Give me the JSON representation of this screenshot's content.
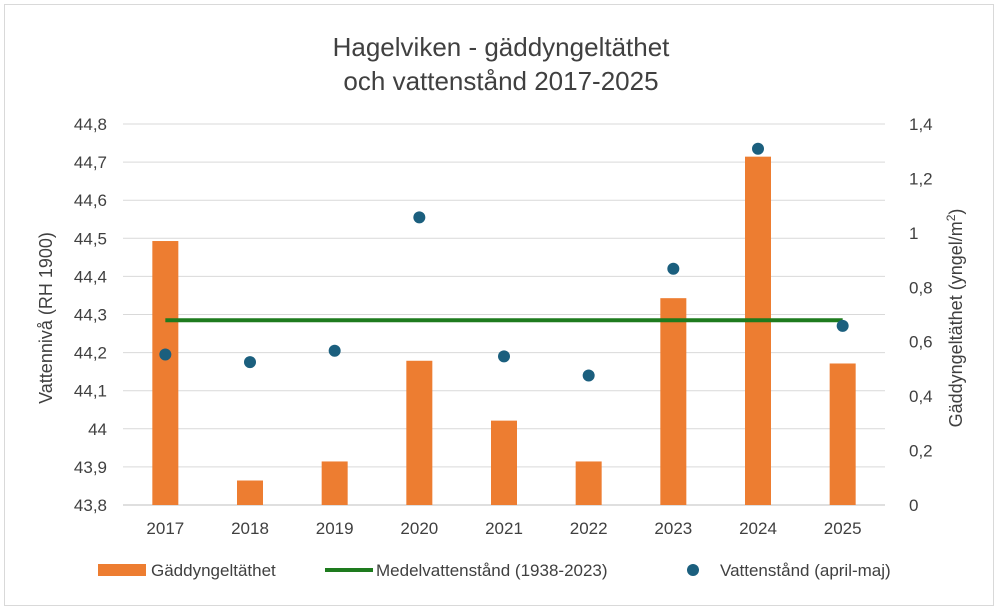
{
  "chart_data": {
    "type": "bar",
    "title_line1": "Hagelviken - gäddyngeltäthet",
    "title_line2": "och vattenstånd 2017-2025",
    "categories": [
      "2017",
      "2018",
      "2019",
      "2020",
      "2021",
      "2022",
      "2023",
      "2024",
      "2025"
    ],
    "y_left": {
      "label": "Vattennivå (RH 1900)",
      "range": [
        43.8,
        44.8
      ],
      "ticks": [
        "43,8",
        "43,9",
        "44",
        "44,1",
        "44,2",
        "44,3",
        "44,4",
        "44,5",
        "44,6",
        "44,7",
        "44,8"
      ],
      "tick_values": [
        43.8,
        43.9,
        44.0,
        44.1,
        44.2,
        44.3,
        44.4,
        44.5,
        44.6,
        44.7,
        44.8
      ]
    },
    "y_right": {
      "label": "Gäddyngeltäthet (yngel/m",
      "label_sup": "2",
      "label_end": ")",
      "range": [
        0,
        1.4
      ],
      "ticks": [
        "0",
        "0,2",
        "0,4",
        "0,6",
        "0,8",
        "1",
        "1,2",
        "1,4"
      ],
      "tick_values": [
        0,
        0.2,
        0.4,
        0.6,
        0.8,
        1.0,
        1.2,
        1.4
      ]
    },
    "series": [
      {
        "name": "Gäddyngeltäthet",
        "kind": "bar",
        "axis": "right",
        "color": "#ED7D31",
        "values": [
          0.97,
          0.09,
          0.16,
          0.53,
          0.31,
          0.16,
          0.76,
          1.28,
          0.52
        ]
      },
      {
        "name": "Medelvattenstånd (1938-2023)",
        "kind": "line",
        "axis": "left",
        "color": "#1E7B1E",
        "values": [
          44.285,
          44.285,
          44.285,
          44.285,
          44.285,
          44.285,
          44.285,
          44.285,
          44.285
        ]
      },
      {
        "name": "Vattenstånd (april-maj)",
        "kind": "scatter",
        "axis": "left",
        "color": "#1B5F7E",
        "values": [
          44.195,
          44.175,
          44.205,
          44.555,
          44.19,
          44.14,
          44.42,
          44.735,
          44.27
        ]
      }
    ],
    "grid": true,
    "legend_position": "bottom"
  }
}
